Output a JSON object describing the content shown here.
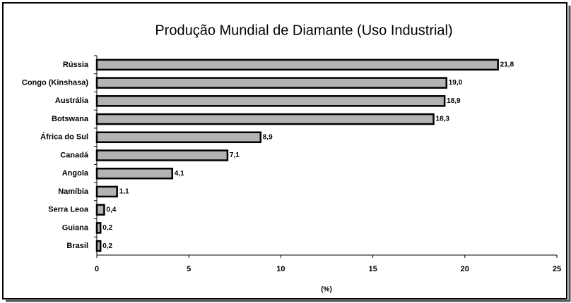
{
  "chart_data": {
    "type": "bar",
    "orientation": "horizontal",
    "title": "Produção Mundial de Diamante (Uso Industrial)",
    "x_label": "(%)",
    "categories": [
      "Rússia",
      "Congo (Kinshasa)",
      "Austrália",
      "Botswana",
      "África do Sul",
      "Canadá",
      "Angola",
      "Namíbia",
      "Serra Leoa",
      "Guiana",
      "Brasil"
    ],
    "values": [
      21.8,
      19.0,
      18.9,
      18.3,
      8.9,
      7.1,
      4.1,
      1.1,
      0.4,
      0.2,
      0.2
    ],
    "value_labels": [
      "21,8",
      "19,0",
      "18,9",
      "18,3",
      "8,9",
      "7,1",
      "4,1",
      "1,1",
      "0,4",
      "0,2",
      "0,2"
    ],
    "color": "#b3b3b3",
    "xlim": [
      0,
      25
    ],
    "xticks": [
      0,
      5,
      10,
      15,
      20,
      25
    ],
    "grid": false
  }
}
